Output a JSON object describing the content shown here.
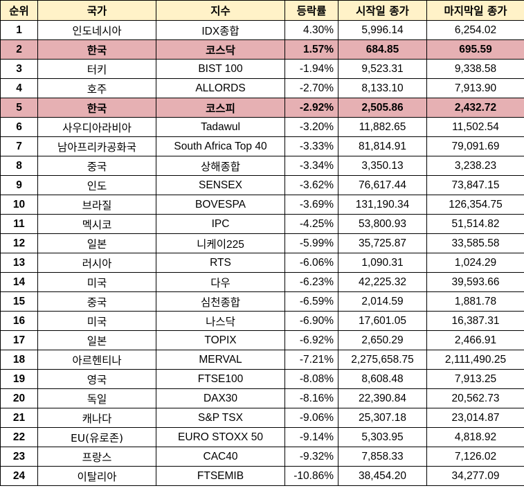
{
  "table": {
    "headers": {
      "rank": "순위",
      "country": "국가",
      "index": "지수",
      "change": "등락률",
      "open": "시작일 종가",
      "close": "마지막일 종가"
    },
    "highlight_color": "#e6b0b3",
    "header_color": "#fff2c8",
    "rows": [
      {
        "rank": "1",
        "country": "인도네시아",
        "index": "IDX종합",
        "change": "4.30%",
        "open": "5,996.14",
        "close": "6,254.02",
        "highlight": false
      },
      {
        "rank": "2",
        "country": "한국",
        "index": "코스닥",
        "change": "1.57%",
        "open": "684.85",
        "close": "695.59",
        "highlight": true
      },
      {
        "rank": "3",
        "country": "터키",
        "index": "BIST 100",
        "change": "-1.94%",
        "open": "9,523.31",
        "close": "9,338.58",
        "highlight": false
      },
      {
        "rank": "4",
        "country": "호주",
        "index": "ALLORDS",
        "change": "-2.70%",
        "open": "8,133.10",
        "close": "7,913.90",
        "highlight": false
      },
      {
        "rank": "5",
        "country": "한국",
        "index": "코스피",
        "change": "-2.92%",
        "open": "2,505.86",
        "close": "2,432.72",
        "highlight": true
      },
      {
        "rank": "6",
        "country": "사우디아라비아",
        "index": "Tadawul",
        "change": "-3.20%",
        "open": "11,882.65",
        "close": "11,502.54",
        "highlight": false
      },
      {
        "rank": "7",
        "country": "남아프리카공화국",
        "index": "South Africa Top 40",
        "change": "-3.33%",
        "open": "81,814.91",
        "close": "79,091.69",
        "highlight": false
      },
      {
        "rank": "8",
        "country": "중국",
        "index": "상해종합",
        "change": "-3.34%",
        "open": "3,350.13",
        "close": "3,238.23",
        "highlight": false
      },
      {
        "rank": "9",
        "country": "인도",
        "index": "SENSEX",
        "change": "-3.62%",
        "open": "76,617.44",
        "close": "73,847.15",
        "highlight": false
      },
      {
        "rank": "10",
        "country": "브라질",
        "index": "BOVESPA",
        "change": "-3.69%",
        "open": "131,190.34",
        "close": "126,354.75",
        "highlight": false
      },
      {
        "rank": "11",
        "country": "멕시코",
        "index": "IPC",
        "change": "-4.25%",
        "open": "53,800.93",
        "close": "51,514.82",
        "highlight": false
      },
      {
        "rank": "12",
        "country": "일본",
        "index": "니케이225",
        "change": "-5.99%",
        "open": "35,725.87",
        "close": "33,585.58",
        "highlight": false
      },
      {
        "rank": "13",
        "country": "러시아",
        "index": "RTS",
        "change": "-6.06%",
        "open": "1,090.31",
        "close": "1,024.29",
        "highlight": false
      },
      {
        "rank": "14",
        "country": "미국",
        "index": "다우",
        "change": "-6.23%",
        "open": "42,225.32",
        "close": "39,593.66",
        "highlight": false
      },
      {
        "rank": "15",
        "country": "중국",
        "index": "심천종합",
        "change": "-6.59%",
        "open": "2,014.59",
        "close": "1,881.78",
        "highlight": false
      },
      {
        "rank": "16",
        "country": "미국",
        "index": "나스닥",
        "change": "-6.90%",
        "open": "17,601.05",
        "close": "16,387.31",
        "highlight": false
      },
      {
        "rank": "17",
        "country": "일본",
        "index": "TOPIX",
        "change": "-6.92%",
        "open": "2,650.29",
        "close": "2,466.91",
        "highlight": false
      },
      {
        "rank": "18",
        "country": "아르헨티나",
        "index": "MERVAL",
        "change": "-7.21%",
        "open": "2,275,658.75",
        "close": "2,111,490.25",
        "highlight": false
      },
      {
        "rank": "19",
        "country": "영국",
        "index": "FTSE100",
        "change": "-8.08%",
        "open": "8,608.48",
        "close": "7,913.25",
        "highlight": false
      },
      {
        "rank": "20",
        "country": "독일",
        "index": "DAX30",
        "change": "-8.16%",
        "open": "22,390.84",
        "close": "20,562.73",
        "highlight": false
      },
      {
        "rank": "21",
        "country": "캐나다",
        "index": "S&P TSX",
        "change": "-9.06%",
        "open": "25,307.18",
        "close": "23,014.87",
        "highlight": false
      },
      {
        "rank": "22",
        "country": "EU(유로존)",
        "index": "EURO STOXX 50",
        "change": "-9.14%",
        "open": "5,303.95",
        "close": "4,818.92",
        "highlight": false
      },
      {
        "rank": "23",
        "country": "프랑스",
        "index": "CAC40",
        "change": "-9.32%",
        "open": "7,858.33",
        "close": "7,126.02",
        "highlight": false
      },
      {
        "rank": "24",
        "country": "이탈리아",
        "index": "FTSEMIB",
        "change": "-10.86%",
        "open": "38,454.20",
        "close": "34,277.09",
        "highlight": false
      }
    ]
  }
}
